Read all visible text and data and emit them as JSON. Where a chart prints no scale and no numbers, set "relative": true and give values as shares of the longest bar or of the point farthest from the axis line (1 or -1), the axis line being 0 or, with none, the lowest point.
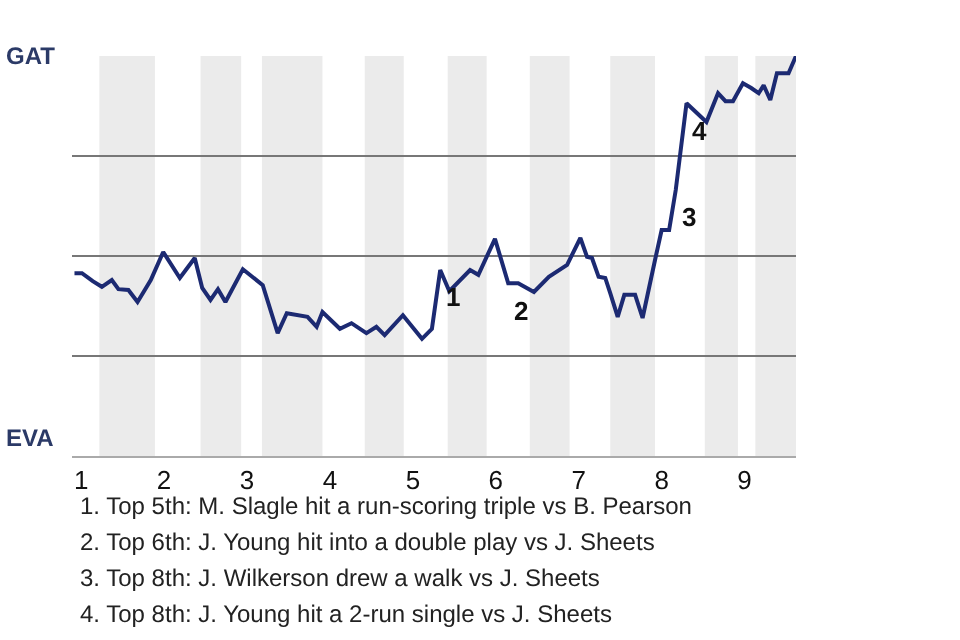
{
  "chart_data": {
    "type": "line",
    "relative": true,
    "x": [
      0.92,
      1.01,
      1.14,
      1.25,
      1.37,
      1.45,
      1.57,
      1.68,
      1.84,
      1.99,
      2.19,
      2.37,
      2.46,
      2.56,
      2.65,
      2.74,
      2.95,
      3.19,
      3.37,
      3.48,
      3.73,
      3.84,
      3.91,
      4.12,
      4.26,
      4.44,
      4.56,
      4.66,
      4.88,
      5.11,
      5.23,
      5.33,
      5.44,
      5.69,
      5.79,
      5.99,
      6.15,
      6.27,
      6.46,
      6.64,
      6.86,
      7.02,
      7.1,
      7.16,
      7.24,
      7.32,
      7.38,
      7.47,
      7.55,
      7.68,
      7.77,
      7.92,
      8.0,
      8.09,
      8.17,
      8.3,
      8.54,
      8.68,
      8.77,
      8.86,
      8.98,
      9.08,
      9.17,
      9.23,
      9.31,
      9.39,
      9.53,
      9.62
    ],
    "series": [
      {
        "color": "#1c2a72",
        "values": [
          0.457,
          0.457,
          0.437,
          0.423,
          0.44,
          0.417,
          0.415,
          0.385,
          0.44,
          0.51,
          0.445,
          0.495,
          0.42,
          0.39,
          0.417,
          0.385,
          0.467,
          0.427,
          0.307,
          0.357,
          0.348,
          0.323,
          0.36,
          0.318,
          0.332,
          0.307,
          0.323,
          0.302,
          0.352,
          0.293,
          0.318,
          0.465,
          0.412,
          0.465,
          0.453,
          0.543,
          0.432,
          0.432,
          0.41,
          0.448,
          0.478,
          0.545,
          0.498,
          0.495,
          0.448,
          0.445,
          0.407,
          0.348,
          0.403,
          0.403,
          0.345,
          0.49,
          0.565,
          0.565,
          0.665,
          0.882,
          0.835,
          0.907,
          0.887,
          0.887,
          0.932,
          0.92,
          0.907,
          0.927,
          0.89,
          0.957,
          0.957,
          1
        ]
      }
    ],
    "xlim": [
      0.89,
      9.62
    ],
    "xticks": [
      1,
      2,
      3,
      4,
      5,
      6,
      7,
      8,
      9
    ],
    "tick_labels": "x",
    "grid": "y",
    "marker": "none",
    "line_style": "solid",
    "bands": [
      {
        "axis": "x",
        "from": 1.22,
        "to": 1.89,
        "color": "#ebebeb"
      },
      {
        "axis": "x",
        "from": 2.44,
        "to": 2.93,
        "color": "#ebebeb"
      },
      {
        "axis": "x",
        "from": 3.18,
        "to": 3.91,
        "color": "#ebebeb"
      },
      {
        "axis": "x",
        "from": 4.42,
        "to": 4.89,
        "color": "#ebebeb"
      },
      {
        "axis": "x",
        "from": 5.42,
        "to": 5.89,
        "color": "#ebebeb"
      },
      {
        "axis": "x",
        "from": 6.41,
        "to": 6.89,
        "color": "#ebebeb"
      },
      {
        "axis": "x",
        "from": 7.38,
        "to": 7.92,
        "color": "#ebebeb"
      },
      {
        "axis": "x",
        "from": 8.52,
        "to": 8.92,
        "color": "#ebebeb"
      },
      {
        "axis": "x",
        "from": 9.13,
        "to": 9.62,
        "color": "#ebebeb"
      }
    ],
    "annotations": [
      "GAT",
      "EVA",
      {
        "text": "1",
        "x": 5.33,
        "y": 0.465
      },
      {
        "text": "2",
        "x": 6.15,
        "y": 0.432
      },
      {
        "text": "3",
        "x": 8.17,
        "y": 0.665
      },
      {
        "text": "4",
        "x": 8.3,
        "y": 0.882
      },
      "1. Top 5th: M. Slagle hit a run-scoring triple vs B. Pearson",
      "2. Top 6th: J. Young hit into a double play vs J. Sheets",
      "3. Top 8th: J. Wilkerson drew a walk vs J. Sheets",
      "4. Top 8th: J. Young hit a 2-run single vs J. Sheets"
    ]
  }
}
